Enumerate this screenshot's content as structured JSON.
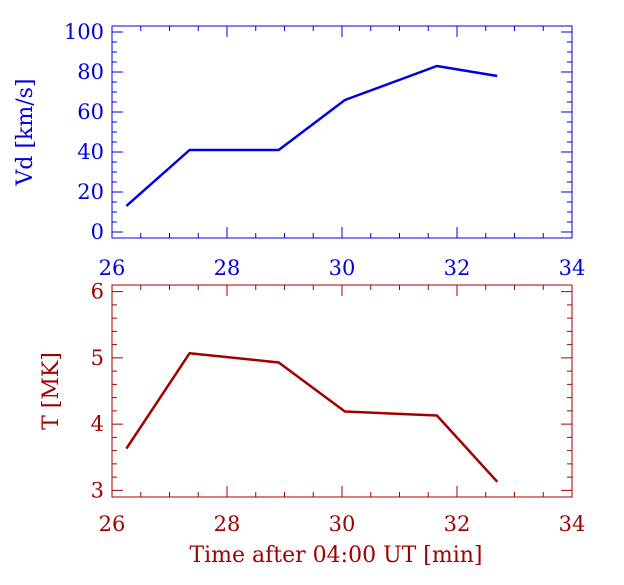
{
  "chart_data": [
    {
      "type": "line",
      "color": "#0000e0",
      "xlabel": "",
      "ylabel": "Vd [km/s]",
      "xlim": [
        26,
        34
      ],
      "ylim": [
        -3,
        103
      ],
      "xticks": [
        26,
        28,
        30,
        32,
        34
      ],
      "xtick_labels": [
        "26",
        "28",
        "30",
        "32",
        "34"
      ],
      "yticks": [
        0,
        20,
        40,
        60,
        80,
        100
      ],
      "ytick_labels": [
        "0",
        "20",
        "40",
        "60",
        "80",
        "100"
      ],
      "series": [
        {
          "name": "Vd",
          "x": [
            26.25,
            27.35,
            28.9,
            30.05,
            31.65,
            32.7
          ],
          "y": [
            13,
            41,
            41,
            66,
            83,
            78
          ]
        }
      ]
    },
    {
      "type": "line",
      "color": "#a00000",
      "xlabel": "Time after 04:00 UT [min]",
      "ylabel": "T [MK]",
      "xlim": [
        26,
        34
      ],
      "ylim": [
        2.9,
        6.1
      ],
      "xticks": [
        26,
        28,
        30,
        32,
        34
      ],
      "xtick_labels": [
        "26",
        "28",
        "30",
        "32",
        "34"
      ],
      "yticks": [
        3,
        4,
        5,
        6
      ],
      "ytick_labels": [
        "3",
        "4",
        "5",
        "6"
      ],
      "series": [
        {
          "name": "T",
          "x": [
            26.25,
            27.35,
            28.9,
            30.05,
            31.65,
            32.7
          ],
          "y": [
            3.63,
            5.07,
            4.93,
            4.19,
            4.13,
            3.13
          ]
        }
      ]
    }
  ]
}
